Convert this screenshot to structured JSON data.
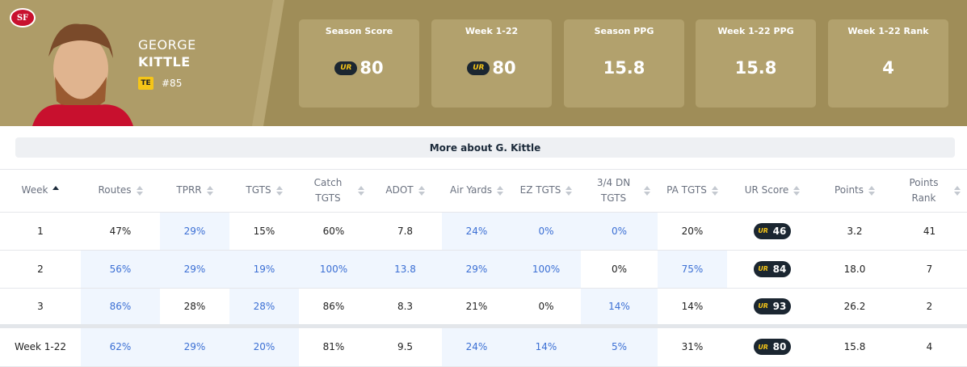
{
  "header": {
    "team_logo": "SF",
    "first_name": "GEORGE",
    "last_name": "KITTLE",
    "position": "TE",
    "number": "#85"
  },
  "score_badge": "UR",
  "stats": [
    {
      "label": "Season Score",
      "value": 80,
      "ur_badge": true
    },
    {
      "label": "Week 1-22",
      "value": 80,
      "ur_badge": true
    },
    {
      "label": "Season PPG",
      "value": 15.8,
      "ur_badge": false
    },
    {
      "label": "Week 1-22 PPG",
      "value": 15.8,
      "ur_badge": false
    },
    {
      "label": "Week 1-22 Rank",
      "value": 4,
      "ur_badge": false
    }
  ],
  "more_link": "More about G. Kittle",
  "table": {
    "columns": [
      "Week",
      "Routes",
      "TPRR",
      "TGTS",
      "Catch TGTS",
      "ADOT",
      "Air Yards",
      "EZ TGTS",
      "3/4 DN TGTS",
      "PA TGTS",
      "UR Score",
      "Points",
      "Points Rank"
    ],
    "sorted_column": 0,
    "score_column": 10,
    "rows": [
      {
        "cells": [
          "1",
          "47%",
          "29%",
          "15%",
          "60%",
          "7.8",
          "24%",
          "0%",
          "0%",
          "20%",
          46,
          "3.2",
          "41"
        ],
        "highlighted": [
          false,
          false,
          true,
          false,
          false,
          false,
          true,
          true,
          true,
          false,
          false,
          false,
          false
        ]
      },
      {
        "cells": [
          "2",
          "56%",
          "29%",
          "19%",
          "100%",
          "13.8",
          "29%",
          "100%",
          "0%",
          "75%",
          84,
          "18.0",
          "7"
        ],
        "highlighted": [
          false,
          true,
          true,
          true,
          true,
          true,
          true,
          true,
          false,
          true,
          false,
          false,
          false
        ]
      },
      {
        "cells": [
          "3",
          "86%",
          "28%",
          "28%",
          "86%",
          "8.3",
          "21%",
          "0%",
          "14%",
          "14%",
          93,
          "26.2",
          "2"
        ],
        "highlighted": [
          false,
          true,
          false,
          true,
          false,
          false,
          false,
          false,
          true,
          false,
          false,
          false,
          false
        ]
      }
    ],
    "total": {
      "cells": [
        "Week 1-22",
        "62%",
        "29%",
        "20%",
        "81%",
        "9.5",
        "24%",
        "14%",
        "5%",
        "31%",
        80,
        "15.8",
        "4"
      ],
      "highlighted": [
        false,
        true,
        true,
        true,
        false,
        false,
        true,
        true,
        true,
        false,
        false,
        false,
        false
      ]
    }
  }
}
